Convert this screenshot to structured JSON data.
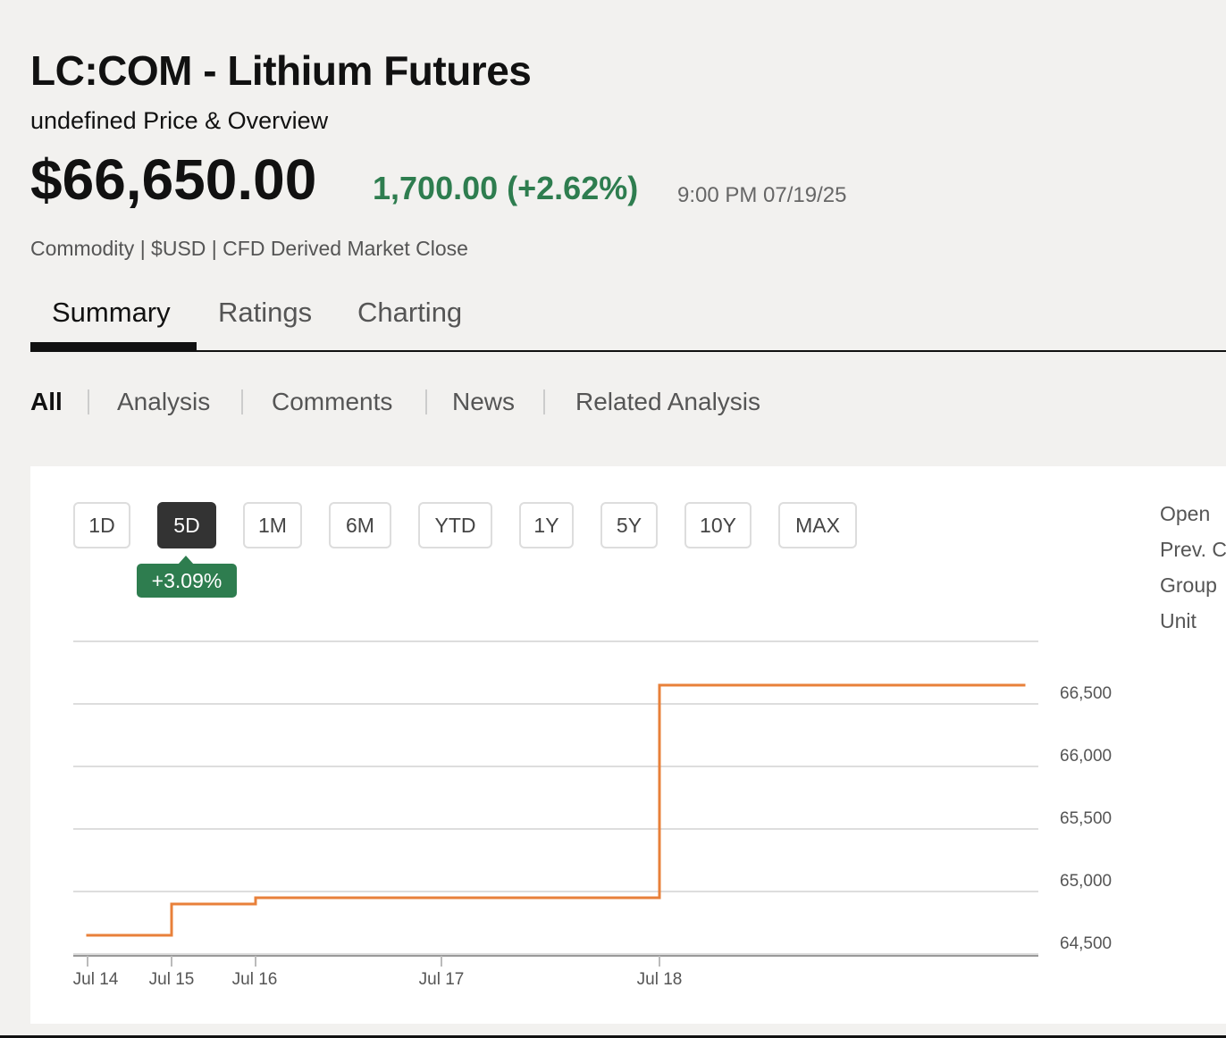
{
  "header": {
    "title": "LC:COM - Lithium Futures",
    "subtitle": "undefined Price & Overview",
    "price": "$66,650.00",
    "change": "1,700.00 (+2.62%)",
    "time": "9:00 PM 07/19/25",
    "meta": "Commodity | $USD | CFD Derived Market Close"
  },
  "tabs": [
    "Summary",
    "Ratings",
    "Charting"
  ],
  "subtabs": [
    "All",
    "Analysis",
    "Comments",
    "News",
    "Related Analysis"
  ],
  "ranges": [
    "1D",
    "5D",
    "1M",
    "6M",
    "YTD",
    "1Y",
    "5Y",
    "10Y",
    "MAX"
  ],
  "range_change": "+3.09%",
  "stats_labels": [
    "Open",
    "Prev. Close",
    "Group",
    "Unit"
  ],
  "chart_data": {
    "type": "line",
    "step": true,
    "x": [
      "Jul 14",
      "Jul 15",
      "Jul 16",
      "Jul 17",
      "Jul 18"
    ],
    "values": [
      64650,
      64900,
      64950,
      64950,
      66650
    ],
    "color": "#e8803a",
    "ylim": [
      64500,
      67000
    ],
    "yticks": [
      {
        "value": 64500,
        "label": "64,500"
      },
      {
        "value": 65000,
        "label": "65,000"
      },
      {
        "value": 65500,
        "label": "65,500"
      },
      {
        "value": 66000,
        "label": "66,000"
      },
      {
        "value": 66500,
        "label": "66,500"
      }
    ],
    "grid": true
  }
}
